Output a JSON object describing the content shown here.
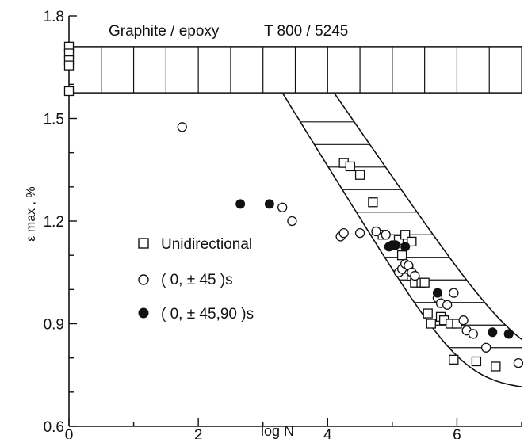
{
  "chart_data": {
    "type": "scatter",
    "title": "Graphite / epoxy",
    "subtitle": "T 800 / 5245",
    "xlabel": "log N",
    "ylabel": "ε max , %",
    "xlim": [
      0,
      7
    ],
    "ylim": [
      0.6,
      1.8
    ],
    "xticks": [
      "0",
      "2",
      "4",
      "6"
    ],
    "yticks": [
      "0.6",
      "0.9",
      "1.2",
      "1.5",
      "1.8"
    ],
    "grid": false,
    "legend": "center-left",
    "scatter_band": {
      "static_range": [
        1.575,
        1.71
      ],
      "knee_x": {
        "lower": 3.3,
        "upper": 4.1
      },
      "upper_limit_at_7": 0.76,
      "lower_limit_at_7": 0.706
    },
    "series": [
      {
        "name": "Unidirectional",
        "marker": "open-square",
        "points": [
          [
            0,
            1.71
          ],
          [
            0,
            1.69
          ],
          [
            0,
            1.67
          ],
          [
            0,
            1.655
          ],
          [
            0,
            1.58
          ],
          [
            4.25,
            1.37
          ],
          [
            4.35,
            1.36
          ],
          [
            4.5,
            1.335
          ],
          [
            4.7,
            1.255
          ],
          [
            4.85,
            1.16
          ],
          [
            5.1,
            1.145
          ],
          [
            5.2,
            1.16
          ],
          [
            5.3,
            1.14
          ],
          [
            5.15,
            1.1
          ],
          [
            5.25,
            1.06
          ],
          [
            5.3,
            1.04
          ],
          [
            5.35,
            1.02
          ],
          [
            5.45,
            1.02
          ],
          [
            5.5,
            1.02
          ],
          [
            5.55,
            0.93
          ],
          [
            5.6,
            0.9
          ],
          [
            5.75,
            0.92
          ],
          [
            5.8,
            0.91
          ],
          [
            5.9,
            0.9
          ],
          [
            6.0,
            0.9
          ],
          [
            5.95,
            0.795
          ],
          [
            6.3,
            0.79
          ],
          [
            6.6,
            0.775
          ]
        ]
      },
      {
        "name": "( 0, ± 45 )s",
        "marker": "open-circle",
        "points": [
          [
            1.75,
            1.475
          ],
          [
            3.3,
            1.24
          ],
          [
            3.45,
            1.2
          ],
          [
            4.2,
            1.155
          ],
          [
            4.25,
            1.165
          ],
          [
            4.5,
            1.165
          ],
          [
            4.75,
            1.17
          ],
          [
            4.9,
            1.16
          ],
          [
            5.1,
            1.05
          ],
          [
            5.15,
            1.06
          ],
          [
            5.2,
            1.075
          ],
          [
            5.25,
            1.07
          ],
          [
            5.3,
            1.05
          ],
          [
            5.35,
            1.04
          ],
          [
            5.7,
            0.975
          ],
          [
            5.75,
            0.96
          ],
          [
            5.85,
            0.955
          ],
          [
            5.95,
            0.99
          ],
          [
            6.1,
            0.91
          ],
          [
            6.15,
            0.88
          ],
          [
            6.25,
            0.87
          ],
          [
            6.45,
            0.83
          ],
          [
            6.95,
            0.785
          ]
        ]
      },
      {
        "name": "( 0, ± 45,90 )s",
        "marker": "filled-circle",
        "points": [
          [
            2.65,
            1.25
          ],
          [
            3.1,
            1.25
          ],
          [
            4.95,
            1.125
          ],
          [
            5.0,
            1.13
          ],
          [
            5.05,
            1.13
          ],
          [
            5.2,
            1.125
          ],
          [
            5.7,
            0.99
          ],
          [
            6.55,
            0.875
          ],
          [
            6.8,
            0.87
          ]
        ]
      }
    ]
  }
}
